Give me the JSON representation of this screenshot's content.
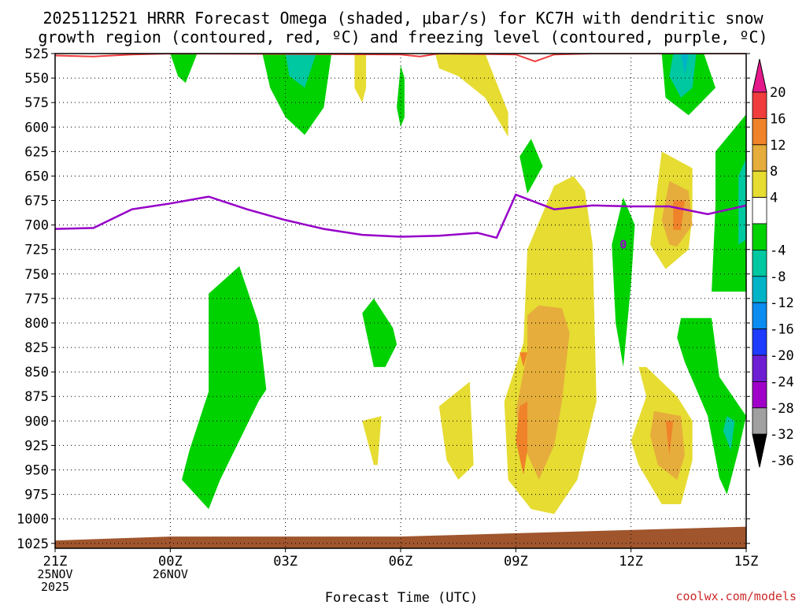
{
  "chart_data": {
    "type": "heatmap",
    "title": [
      "2025112521 HRRR Forecast Omega (shaded, μbar/s) for KC7H with dendritic snow",
      "growth region (contoured, red, ºC) and freezing level (contoured, purple, ºC)"
    ],
    "xlabel": "Forecast Time (UTC)",
    "ylabel": "",
    "credit": "coolwx.com/models",
    "x_domain_hours": [
      0,
      18
    ],
    "x_ticks": [
      {
        "hour": 0,
        "lines": [
          "21Z",
          "25NOV",
          "2025"
        ]
      },
      {
        "hour": 3,
        "lines": [
          "00Z",
          "26NOV"
        ]
      },
      {
        "hour": 6,
        "lines": [
          "03Z"
        ]
      },
      {
        "hour": 9,
        "lines": [
          "06Z"
        ]
      },
      {
        "hour": 12,
        "lines": [
          "09Z"
        ]
      },
      {
        "hour": 15,
        "lines": [
          "12Z"
        ]
      },
      {
        "hour": 18,
        "lines": [
          "15Z"
        ]
      }
    ],
    "y_levels_hPa": [
      525,
      550,
      575,
      600,
      625,
      650,
      675,
      700,
      725,
      750,
      775,
      800,
      825,
      850,
      875,
      900,
      925,
      950,
      975,
      1000,
      1025
    ],
    "ylim": [
      525,
      1030
    ],
    "colorbar": {
      "labels": [
        "20",
        "16",
        "12",
        "8",
        "4",
        "-4",
        "-8",
        "-12",
        "-16",
        "-20",
        "-24",
        "-28",
        "-32",
        "-36"
      ],
      "bins": [
        {
          "range": [
            16,
            20
          ],
          "color": "#f03c3c"
        },
        {
          "range": [
            12,
            16
          ],
          "color": "#f0822a"
        },
        {
          "range": [
            8,
            12
          ],
          "color": "#e6ad3c"
        },
        {
          "range": [
            4,
            8
          ],
          "color": "#e6dc32"
        },
        {
          "range": [
            -4,
            4
          ],
          "color": "#ffffff"
        },
        {
          "range": [
            -8,
            -4
          ],
          "color": "#00d200"
        },
        {
          "range": [
            -12,
            -8
          ],
          "color": "#00c8a0"
        },
        {
          "range": [
            -16,
            -12
          ],
          "color": "#00b4c8"
        },
        {
          "range": [
            -20,
            -16
          ],
          "color": "#0a8cf0"
        },
        {
          "range": [
            -24,
            -20
          ],
          "color": "#1e3cff"
        },
        {
          "range": [
            -28,
            -24
          ],
          "color": "#6e1ed2"
        },
        {
          "range": [
            -32,
            -28
          ],
          "color": "#a000c8"
        },
        {
          "range": [
            -36,
            -32
          ],
          "color": "#a0a0a0"
        }
      ],
      "top_arrow_color": "#e6198c",
      "bottom_arrow_color": "#000000"
    },
    "freezing_level": {
      "color": "#9600c8",
      "label": "0",
      "label_point": [
        14.8,
        719
      ],
      "points": [
        [
          0,
          704
        ],
        [
          1,
          703
        ],
        [
          2,
          684
        ],
        [
          2.5,
          681
        ],
        [
          3,
          678
        ],
        [
          4,
          671
        ],
        [
          5,
          684
        ],
        [
          6,
          695
        ],
        [
          7,
          704
        ],
        [
          8,
          710
        ],
        [
          9,
          712
        ],
        [
          10,
          711
        ],
        [
          11,
          708
        ],
        [
          11.5,
          713
        ],
        [
          12,
          669
        ],
        [
          13,
          684
        ],
        [
          14,
          680
        ],
        [
          15,
          681
        ],
        [
          16,
          681
        ],
        [
          17,
          689
        ],
        [
          18,
          680
        ]
      ]
    },
    "dgz_contour": {
      "color": "#f03c3c",
      "points": [
        [
          0,
          527
        ],
        [
          1,
          528
        ],
        [
          2,
          526
        ],
        [
          3,
          525
        ],
        [
          9,
          526
        ],
        [
          9.5,
          528
        ],
        [
          10,
          525
        ],
        [
          12,
          526
        ],
        [
          12.5,
          533
        ],
        [
          13,
          526
        ],
        [
          14,
          525
        ],
        [
          18,
          525
        ]
      ]
    },
    "omega_regions": [
      {
        "value": -6,
        "points": [
          [
            3.0,
            525
          ],
          [
            3.7,
            525
          ],
          [
            3.4,
            555
          ],
          [
            3.2,
            548
          ]
        ]
      },
      {
        "value": -6,
        "points": [
          [
            5.4,
            525
          ],
          [
            7.2,
            525
          ],
          [
            7.0,
            580
          ],
          [
            6.5,
            608
          ],
          [
            6.0,
            590
          ],
          [
            5.6,
            560
          ]
        ]
      },
      {
        "value": -10,
        "points": [
          [
            6.0,
            525
          ],
          [
            6.8,
            525
          ],
          [
            6.5,
            560
          ],
          [
            6.1,
            548
          ]
        ]
      },
      {
        "value": -6,
        "points": [
          [
            9.0,
            537
          ],
          [
            9.1,
            550
          ],
          [
            9.1,
            590
          ],
          [
            9.0,
            600
          ],
          [
            8.9,
            580
          ]
        ]
      },
      {
        "value": -6,
        "points": [
          [
            12.4,
            612
          ],
          [
            12.7,
            640
          ],
          [
            12.3,
            668
          ],
          [
            12.1,
            630
          ]
        ]
      },
      {
        "value": -6,
        "points": [
          [
            14.8,
            672
          ],
          [
            15.1,
            700
          ],
          [
            15.0,
            760
          ],
          [
            14.8,
            845
          ],
          [
            14.6,
            800
          ],
          [
            14.5,
            720
          ]
        ]
      },
      {
        "value": -6,
        "points": [
          [
            15.8,
            525
          ],
          [
            16.9,
            525
          ],
          [
            17.2,
            560
          ],
          [
            16.5,
            588
          ],
          [
            15.9,
            570
          ]
        ]
      },
      {
        "value": -10,
        "points": [
          [
            16.1,
            525
          ],
          [
            16.7,
            525
          ],
          [
            16.6,
            560
          ],
          [
            16.3,
            570
          ],
          [
            16.0,
            548
          ]
        ]
      },
      {
        "value": -14,
        "points": [
          [
            16.3,
            525
          ],
          [
            16.5,
            525
          ],
          [
            16.4,
            547
          ]
        ]
      },
      {
        "value": -6,
        "points": [
          [
            17.2,
            625
          ],
          [
            18.0,
            587
          ],
          [
            18.0,
            768
          ],
          [
            17.1,
            768
          ],
          [
            17.2,
            680
          ]
        ]
      },
      {
        "value": -10,
        "points": [
          [
            17.8,
            650
          ],
          [
            18.0,
            632
          ],
          [
            18.0,
            715
          ],
          [
            17.8,
            720
          ]
        ]
      },
      {
        "value": -6,
        "points": [
          [
            4.0,
            770
          ],
          [
            4.8,
            742
          ],
          [
            5.3,
            800
          ],
          [
            5.5,
            868
          ],
          [
            5.3,
            880
          ],
          [
            4.8,
            920
          ],
          [
            4.3,
            960
          ],
          [
            4.0,
            990
          ],
          [
            3.3,
            960
          ],
          [
            3.5,
            930
          ],
          [
            4.0,
            870
          ],
          [
            4.0,
            810
          ]
        ]
      },
      {
        "value": -6,
        "points": [
          [
            8.3,
            775
          ],
          [
            8.8,
            805
          ],
          [
            8.9,
            822
          ],
          [
            8.6,
            845
          ],
          [
            8.3,
            845
          ],
          [
            8.0,
            790
          ]
        ]
      },
      {
        "value": -6,
        "points": [
          [
            16.3,
            795
          ],
          [
            17.1,
            795
          ],
          [
            17.3,
            855
          ],
          [
            18.0,
            895
          ],
          [
            17.8,
            930
          ],
          [
            17.5,
            975
          ],
          [
            17.3,
            958
          ],
          [
            17.0,
            895
          ],
          [
            16.4,
            840
          ],
          [
            16.2,
            815
          ]
        ]
      },
      {
        "value": -10,
        "points": [
          [
            17.5,
            895
          ],
          [
            17.7,
            900
          ],
          [
            17.6,
            930
          ],
          [
            17.4,
            910
          ]
        ]
      },
      {
        "value": 6,
        "points": [
          [
            7.8,
            525
          ],
          [
            8.1,
            525
          ],
          [
            8.1,
            560
          ],
          [
            8.0,
            575
          ],
          [
            7.8,
            560
          ]
        ]
      },
      {
        "value": 6,
        "points": [
          [
            9.9,
            525
          ],
          [
            11.2,
            525
          ],
          [
            11.8,
            585
          ],
          [
            11.8,
            610
          ],
          [
            11.2,
            570
          ],
          [
            10.5,
            548
          ],
          [
            10.0,
            540
          ]
        ]
      },
      {
        "value": 6,
        "points": [
          [
            15.8,
            625
          ],
          [
            16.6,
            642
          ],
          [
            16.6,
            690
          ],
          [
            16.5,
            725
          ],
          [
            15.9,
            745
          ],
          [
            15.5,
            720
          ]
        ]
      },
      {
        "value": 10,
        "points": [
          [
            16.0,
            655
          ],
          [
            16.5,
            665
          ],
          [
            16.6,
            700
          ],
          [
            16.2,
            722
          ],
          [
            16.0,
            720
          ],
          [
            15.8,
            695
          ]
        ]
      },
      {
        "value": 14,
        "points": [
          [
            16.1,
            675
          ],
          [
            16.4,
            675
          ],
          [
            16.3,
            705
          ],
          [
            16.1,
            705
          ]
        ]
      },
      {
        "value": 6,
        "points": [
          [
            12.3,
            725
          ],
          [
            13.0,
            660
          ],
          [
            13.5,
            650
          ],
          [
            13.8,
            665
          ],
          [
            14.0,
            720
          ],
          [
            14.1,
            880
          ],
          [
            13.6,
            960
          ],
          [
            13.0,
            995
          ],
          [
            12.4,
            990
          ],
          [
            11.8,
            960
          ],
          [
            11.7,
            880
          ],
          [
            12.2,
            820
          ]
        ]
      },
      {
        "value": 10,
        "points": [
          [
            12.3,
            792
          ],
          [
            12.6,
            782
          ],
          [
            13.2,
            785
          ],
          [
            13.4,
            810
          ],
          [
            13.2,
            880
          ],
          [
            13.0,
            925
          ],
          [
            12.6,
            960
          ],
          [
            12.2,
            925
          ],
          [
            12.0,
            890
          ],
          [
            12.3,
            830
          ]
        ]
      },
      {
        "value": 14,
        "points": [
          [
            12.1,
            885
          ],
          [
            12.3,
            880
          ],
          [
            12.3,
            930
          ],
          [
            12.2,
            955
          ],
          [
            12.0,
            920
          ]
        ]
      },
      {
        "value": 14,
        "points": [
          [
            12.1,
            830
          ],
          [
            12.3,
            830
          ],
          [
            12.2,
            845
          ]
        ]
      },
      {
        "value": 6,
        "points": [
          [
            8.0,
            900
          ],
          [
            8.5,
            895
          ],
          [
            8.4,
            945
          ],
          [
            8.3,
            945
          ]
        ]
      },
      {
        "value": 6,
        "points": [
          [
            10.0,
            885
          ],
          [
            10.8,
            860
          ],
          [
            10.9,
            945
          ],
          [
            10.5,
            960
          ],
          [
            10.2,
            940
          ]
        ]
      },
      {
        "value": 6,
        "points": [
          [
            15.4,
            845
          ],
          [
            16.2,
            875
          ],
          [
            16.6,
            900
          ],
          [
            16.6,
            940
          ],
          [
            16.3,
            985
          ],
          [
            15.8,
            985
          ],
          [
            15.2,
            945
          ],
          [
            15.0,
            920
          ],
          [
            15.4,
            875
          ],
          [
            15.2,
            845
          ]
        ]
      },
      {
        "value": 10,
        "points": [
          [
            15.6,
            890
          ],
          [
            16.3,
            895
          ],
          [
            16.4,
            935
          ],
          [
            16.2,
            960
          ],
          [
            15.7,
            945
          ],
          [
            15.5,
            915
          ]
        ]
      },
      {
        "value": 14,
        "points": [
          [
            15.9,
            900
          ],
          [
            16.1,
            900
          ],
          [
            16.0,
            935
          ]
        ]
      }
    ],
    "terrain": {
      "color": "#a0552d",
      "surface": [
        [
          0,
          1022
        ],
        [
          3,
          1018
        ],
        [
          9,
          1018
        ],
        [
          18,
          1008
        ]
      ]
    }
  }
}
